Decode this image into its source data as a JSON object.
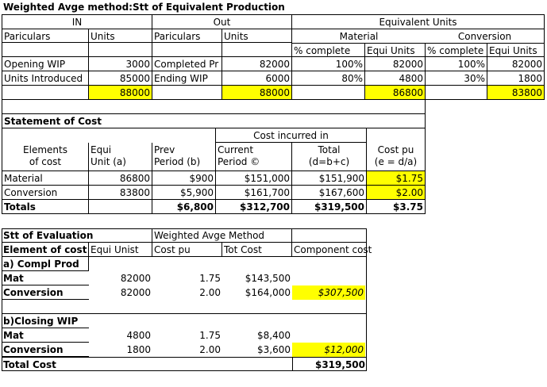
{
  "sheet1": {
    "title": "Weighted Avge method:Stt of Equivalent Production",
    "group_in": "IN",
    "group_out": "Out",
    "group_eq": "Equivalent Units",
    "h_particulars_in": "Pariculars",
    "h_units_in": "Units",
    "h_particulars_out": "Pariculars",
    "h_units_out": "Units",
    "h_material": "Material",
    "h_conversion": "Conversion",
    "h_pct_mat": "% complete",
    "h_eq_mat": "Equi Units",
    "h_pct_conv": "% complete",
    "h_eq_conv": "Equi Units",
    "rows": [
      {
        "in_label": "Opening WIP",
        "in_units": "3000",
        "out_label": "Completed Pr",
        "out_units": "82000",
        "mat_pct": "100%",
        "mat_eq": "82000",
        "conv_pct": "100%",
        "conv_eq": "82000"
      },
      {
        "in_label": "Units Introduced",
        "in_units": "85000",
        "out_label": "Ending WIP",
        "out_units": "6000",
        "mat_pct": "80%",
        "mat_eq": "4800",
        "conv_pct": "30%",
        "conv_eq": "1800"
      }
    ],
    "totals": {
      "in_units": "88000",
      "out_units": "88000",
      "mat_eq": "86800",
      "conv_eq": "83800"
    }
  },
  "sheet2": {
    "title": "Statement of Cost",
    "cost_incurred": "Cost incurred in",
    "h_elements_1": "Elements",
    "h_elements_2": "of cost",
    "h_equi_1": "Equi",
    "h_equi_2": "Unit (a)",
    "h_prev_1": "Prev",
    "h_prev_2": "Period (b)",
    "h_curr_1": "Current",
    "h_curr_2": "Period ©",
    "h_total_1": "Total",
    "h_total_2": "(d=b+c)",
    "h_cpu_1": "Cost pu",
    "h_cpu_2": "(e = d/a)",
    "rows": [
      {
        "element": "Material",
        "equi": "86800",
        "prev": "$900",
        "curr": "$151,000",
        "total": "$151,900",
        "cpu": "$1.75"
      },
      {
        "element": "Conversion",
        "equi": "83800",
        "prev": "$5,900",
        "curr": "$161,700",
        "total": "$167,600",
        "cpu": "$2.00"
      }
    ],
    "totals": {
      "label": "Totals",
      "prev": "$6,800",
      "curr": "$312,700",
      "total": "$319,500",
      "cpu": "$3.75"
    }
  },
  "sheet3": {
    "title": "Stt of Evaluation",
    "method": "Weighted Avge Method",
    "h_element": "Element of cost",
    "h_equi": "Equi Unist",
    "h_cpu": "Cost pu",
    "h_tot": "Tot Cost",
    "h_comp": "Component cost",
    "sec_a": "a) Compl Prod",
    "a_rows": [
      {
        "label": "Mat",
        "equi": "82000",
        "cpu": "1.75",
        "tot": "$143,500"
      },
      {
        "label": "Conversion",
        "equi": "82000",
        "cpu": "2.00",
        "tot": "$164,000"
      }
    ],
    "a_comp": "$307,500",
    "sec_b": "b)Closing WIP",
    "b_rows": [
      {
        "label": "Mat",
        "equi": "4800",
        "cpu": "1.75",
        "tot": "$8,400"
      },
      {
        "label": "Conversion",
        "equi": "1800",
        "cpu": "2.00",
        "tot": "$3,600"
      }
    ],
    "b_comp": "$12,000",
    "total_label": "Total Cost",
    "total_value": "$319,500"
  }
}
